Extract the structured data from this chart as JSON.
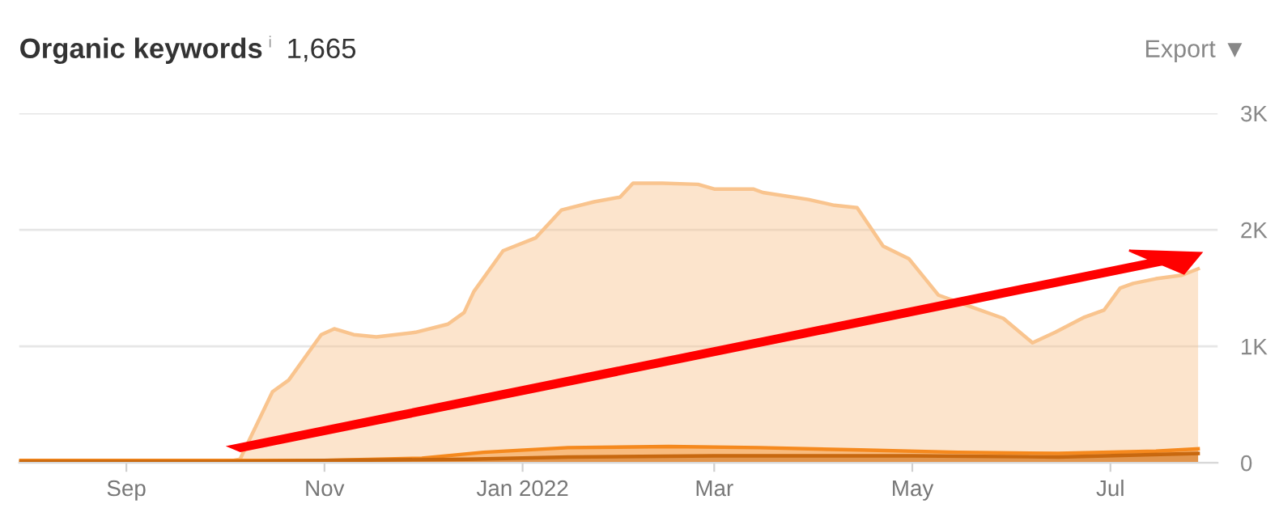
{
  "chart_data": {
    "type": "area",
    "title": "Organic keywords",
    "subtitle": "1,665",
    "annotations": [
      "i",
      "Export ▼"
    ],
    "xlim": [
      "2021-07-30",
      "2022-08-03"
    ],
    "xticks": [
      {
        "value": "2021-09-01",
        "label": "Sep"
      },
      {
        "value": "2021-11-01",
        "label": "Nov"
      },
      {
        "value": "2022-01-01",
        "label": "Jan 2022"
      },
      {
        "value": "2022-03-01",
        "label": "Mar"
      },
      {
        "value": "2022-05-01",
        "label": "May"
      },
      {
        "value": "2022-07-01",
        "label": "Jul"
      }
    ],
    "ylim": [
      0,
      3000
    ],
    "yticks": [
      0,
      {
        "value": 1000,
        "label": "1K"
      },
      {
        "value": 2000,
        "label": "2K"
      },
      {
        "value": 3000,
        "label": "3K"
      }
    ],
    "grid": "y",
    "legend": false,
    "series": [
      {
        "color": "#f9c48e",
        "x": [
          "2021-07-30",
          "2021-10-04",
          "2021-10-06",
          "2021-10-16",
          "2021-10-21",
          "2021-10-31",
          "2021-11-04",
          "2021-11-10",
          "2021-11-17",
          "2021-11-29",
          "2021-12-09",
          "2021-12-14",
          "2021-12-17",
          "2021-12-26",
          "2022-01-05",
          "2022-01-13",
          "2022-01-23",
          "2022-01-31",
          "2022-02-04",
          "2022-02-13",
          "2022-02-24",
          "2022-03-01",
          "2022-03-13",
          "2022-03-16",
          "2022-03-30",
          "2022-04-07",
          "2022-04-14",
          "2022-04-22",
          "2022-04-30",
          "2022-05-09",
          "2022-05-20",
          "2022-05-29",
          "2022-06-07",
          "2022-06-14",
          "2022-06-23",
          "2022-06-29",
          "2022-07-04",
          "2022-07-08",
          "2022-07-15",
          "2022-07-23",
          "2022-07-28"
        ],
        "values": [
          20,
          20,
          30,
          610,
          710,
          1100,
          1150,
          1100,
          1080,
          1120,
          1190,
          1290,
          1470,
          1820,
          1930,
          2170,
          2240,
          2280,
          2400,
          2400,
          2390,
          2350,
          2350,
          2320,
          2260,
          2210,
          2190,
          1860,
          1750,
          1440,
          1330,
          1240,
          1030,
          1120,
          1250,
          1310,
          1500,
          1540,
          1580,
          1610,
          1665
        ]
      },
      {
        "color": "#f5891e",
        "x": [
          "2021-07-30",
          "2021-10-01",
          "2021-11-01",
          "2021-12-01",
          "2021-12-20",
          "2022-01-15",
          "2022-02-15",
          "2022-03-15",
          "2022-04-15",
          "2022-05-15",
          "2022-06-15",
          "2022-07-15",
          "2022-07-28"
        ],
        "values": [
          20,
          20,
          20,
          40,
          90,
          130,
          140,
          130,
          110,
          90,
          80,
          100,
          120
        ]
      },
      {
        "color": "#c8680f",
        "x": [
          "2021-07-30",
          "2021-10-01",
          "2021-11-01",
          "2021-12-15",
          "2022-01-15",
          "2022-03-01",
          "2022-05-01",
          "2022-06-15",
          "2022-07-28"
        ],
        "values": [
          10,
          10,
          20,
          30,
          50,
          60,
          60,
          50,
          80
        ]
      }
    ]
  }
}
